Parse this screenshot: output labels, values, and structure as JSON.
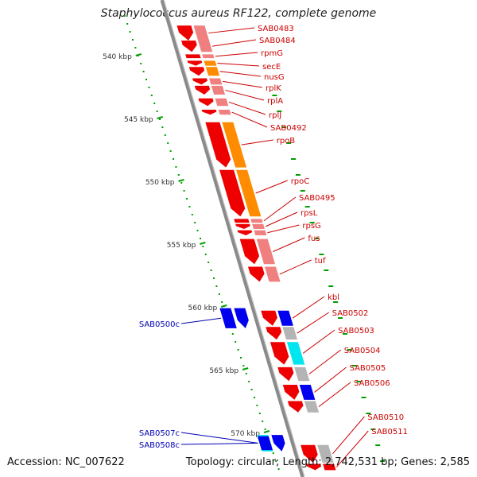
{
  "title": "Staphylococcus aureus RF122, complete genome",
  "footer": {
    "accession": "Accession: NC_007622",
    "summary": "Topology: circular; Length: 2,742,531 bp; Genes: 2,585"
  },
  "colors": {
    "backbone": "#8a8a8a",
    "forward_label": "#cc0000",
    "reverse_label": "#0000b4",
    "tick": "#00a000",
    "gene_red": "#ee0000",
    "cog_pink": "#f08080",
    "cog_orange": "#ff8c00",
    "cog_gray": "#b4b4b4",
    "cog_cyan": "#00e5ee",
    "cog_blue": "#0000ee"
  },
  "axis": {
    "unit": "kbp",
    "major_ticks_kbp": [
      540,
      545,
      550,
      555,
      560,
      565,
      570
    ]
  },
  "genes": [
    {
      "label": "SAB0483",
      "strand": "+",
      "start_kbp": 537.6,
      "end_kbp": 538.8,
      "cog_color": "cog_pink"
    },
    {
      "label": "SAB0484",
      "strand": "+",
      "start_kbp": 538.8,
      "end_kbp": 539.7,
      "cog_color": "cog_pink"
    },
    {
      "label": "rpmG",
      "strand": "+",
      "start_kbp": 539.9,
      "end_kbp": 540.2,
      "cog_color": "cog_pink"
    },
    {
      "label": "secE",
      "strand": "+",
      "start_kbp": 540.4,
      "end_kbp": 540.8,
      "cog_color": "cog_orange"
    },
    {
      "label": "nusG",
      "strand": "+",
      "start_kbp": 540.9,
      "end_kbp": 541.6,
      "cog_color": "cog_orange"
    },
    {
      "label": "rplK",
      "strand": "+",
      "start_kbp": 541.8,
      "end_kbp": 542.3,
      "cog_color": "cog_pink"
    },
    {
      "label": "rplA",
      "strand": "+",
      "start_kbp": 542.4,
      "end_kbp": 543.1,
      "cog_color": "cog_pink"
    },
    {
      "label": "rplJ",
      "strand": "+",
      "start_kbp": 543.4,
      "end_kbp": 544.0,
      "cog_color": "cog_pink"
    },
    {
      "label": "SAB0492",
      "strand": "+",
      "start_kbp": 544.3,
      "end_kbp": 544.7,
      "cog_color": "cog_pink"
    },
    {
      "label": "rpoB",
      "strand": "+",
      "start_kbp": 545.3,
      "end_kbp": 548.9,
      "cog_color": "cog_orange"
    },
    {
      "label": "rpoC",
      "strand": "+",
      "start_kbp": 549.1,
      "end_kbp": 552.8,
      "cog_color": "cog_orange"
    },
    {
      "label": "SAB0495",
      "strand": "+",
      "start_kbp": 553.0,
      "end_kbp": 553.3,
      "cog_color": "cog_pink"
    },
    {
      "label": "rpsL",
      "strand": "+",
      "start_kbp": 553.4,
      "end_kbp": 553.8,
      "cog_color": "cog_pink"
    },
    {
      "label": "rpsG",
      "strand": "+",
      "start_kbp": 553.9,
      "end_kbp": 554.3,
      "cog_color": "cog_pink"
    },
    {
      "label": "fus",
      "strand": "+",
      "start_kbp": 554.6,
      "end_kbp": 556.6,
      "cog_color": "cog_pink"
    },
    {
      "label": "tuf",
      "strand": "+",
      "start_kbp": 556.8,
      "end_kbp": 558.0,
      "cog_color": "cog_pink"
    },
    {
      "label": "kbl",
      "strand": "+",
      "start_kbp": 560.3,
      "end_kbp": 561.5,
      "cog_color": "cog_blue"
    },
    {
      "label": "SAB0502",
      "strand": "+",
      "start_kbp": 561.6,
      "end_kbp": 562.6,
      "cog_color": "cog_gray"
    },
    {
      "label": "SAB0503",
      "strand": "+",
      "start_kbp": 562.8,
      "end_kbp": 564.6,
      "cog_color": "cog_cyan"
    },
    {
      "label": "SAB0504",
      "strand": "+",
      "start_kbp": 564.8,
      "end_kbp": 565.9,
      "cog_color": "cog_gray"
    },
    {
      "label": "SAB0505",
      "strand": "+",
      "start_kbp": 566.2,
      "end_kbp": 567.4,
      "cog_color": "cog_blue"
    },
    {
      "label": "SAB0506",
      "strand": "+",
      "start_kbp": 567.5,
      "end_kbp": 568.4,
      "cog_color": "cog_gray"
    },
    {
      "label": "SAB0510",
      "strand": "+",
      "start_kbp": 571.0,
      "end_kbp": 572.4,
      "cog_color": "cog_gray"
    },
    {
      "label": "SAB0511",
      "strand": "+",
      "start_kbp": 572.5,
      "end_kbp": 573.0,
      "cog_color": "cog_red"
    },
    {
      "label": "SAB0500c",
      "strand": "-",
      "start_kbp": 560.1,
      "end_kbp": 561.7,
      "cog_color": "cog_blue"
    },
    {
      "label": "SAB0507c",
      "strand": "-",
      "start_kbp": 570.2,
      "end_kbp": 571.5,
      "cog_color": "cog_cyan"
    },
    {
      "label": "SAB0508c",
      "strand": "-",
      "start_kbp": 570.3,
      "end_kbp": 571.4,
      "cog_color": "cog_blue"
    }
  ]
}
